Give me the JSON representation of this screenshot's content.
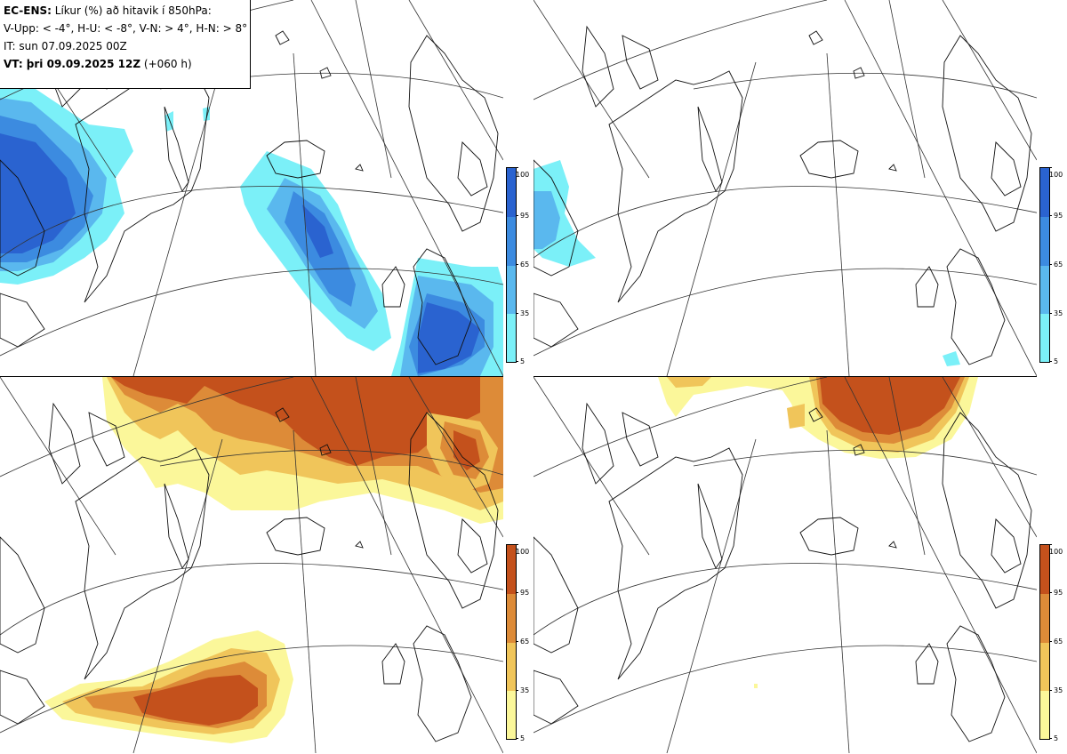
{
  "title_box": {
    "line1_bold": "EC-ENS:",
    "line1_rest": " Líkur (%) að hitavik í 850hPa:",
    "line2": "V-Upp: < -4°, H-U: < -8°, V-N: > 4°, H-N: > 8°",
    "line3": "IT: sun 07.09.2025 00Z",
    "line4_bold": "VT: þri 09.09.2025 12Z",
    "line4_rest": " (+060 h)"
  },
  "legend": {
    "ticks": [
      "100",
      "95",
      "65",
      "35",
      "5"
    ],
    "cold_colors": [
      "#2a63d0",
      "#3c8be0",
      "#5ab8ee",
      "#7bf0f8"
    ],
    "warm_colors": [
      "#c4511c",
      "#dd8b38",
      "#f0c55a",
      "#fbf79a"
    ]
  },
  "panels": [
    {
      "id": "V-Upp",
      "scheme": "cold"
    },
    {
      "id": "H-U",
      "scheme": "cold"
    },
    {
      "id": "V-N",
      "scheme": "warm"
    },
    {
      "id": "H-N",
      "scheme": "warm"
    }
  ]
}
